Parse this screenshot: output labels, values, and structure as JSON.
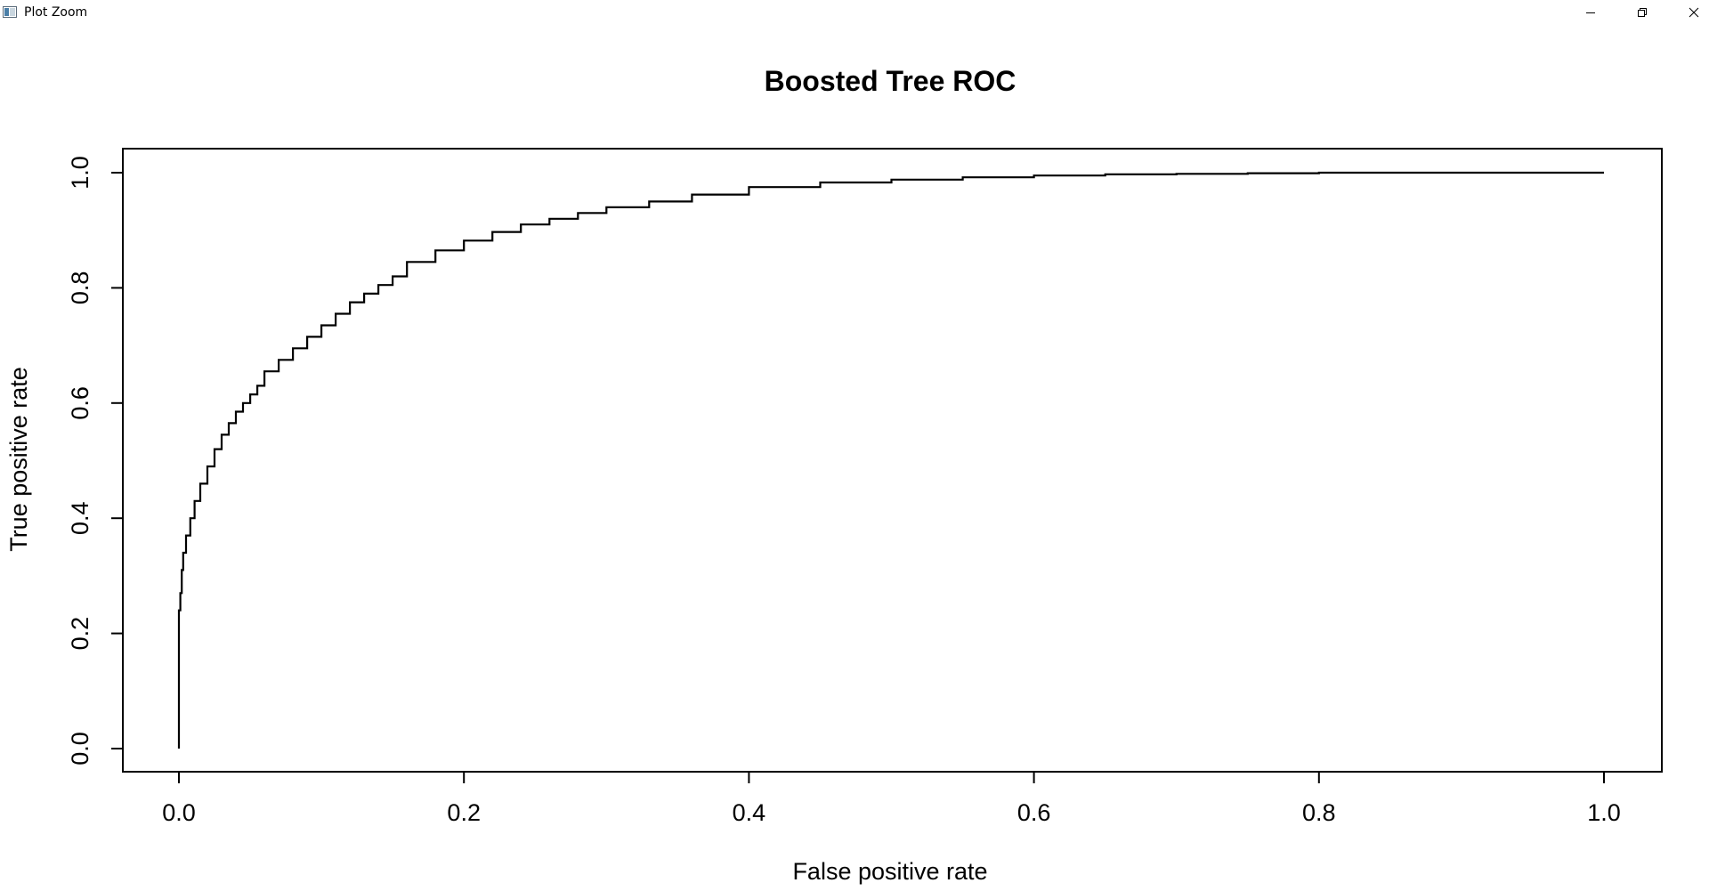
{
  "window": {
    "title": "Plot Zoom",
    "icon": "r-plot-window-icon",
    "controls": [
      "minimize",
      "restore",
      "close"
    ]
  },
  "chart_data": {
    "type": "line",
    "title": "Boosted Tree ROC",
    "xlabel": "False positive rate",
    "ylabel": "True positive rate",
    "xlim": [
      0.0,
      1.0
    ],
    "ylim": [
      0.0,
      1.0
    ],
    "xticks": [
      "0.0",
      "0.2",
      "0.4",
      "0.6",
      "0.8",
      "1.0"
    ],
    "yticks": [
      "0.0",
      "0.2",
      "0.4",
      "0.6",
      "0.8",
      "1.0"
    ],
    "grid": false,
    "legend": "none",
    "series": [
      {
        "color": "#000000",
        "x": [
          0.0,
          0.0,
          0.001,
          0.002,
          0.003,
          0.005,
          0.008,
          0.011,
          0.015,
          0.02,
          0.025,
          0.03,
          0.035,
          0.04,
          0.045,
          0.05,
          0.055,
          0.06,
          0.07,
          0.08,
          0.09,
          0.1,
          0.11,
          0.12,
          0.13,
          0.14,
          0.15,
          0.16,
          0.18,
          0.2,
          0.22,
          0.24,
          0.26,
          0.28,
          0.3,
          0.33,
          0.36,
          0.4,
          0.45,
          0.5,
          0.55,
          0.6,
          0.65,
          0.7,
          0.75,
          0.8,
          0.9,
          1.0
        ],
        "y": [
          0.0,
          0.13,
          0.24,
          0.27,
          0.31,
          0.34,
          0.37,
          0.4,
          0.43,
          0.46,
          0.49,
          0.52,
          0.545,
          0.565,
          0.585,
          0.6,
          0.615,
          0.63,
          0.655,
          0.675,
          0.695,
          0.715,
          0.735,
          0.755,
          0.775,
          0.79,
          0.805,
          0.82,
          0.845,
          0.865,
          0.882,
          0.897,
          0.91,
          0.92,
          0.93,
          0.94,
          0.95,
          0.962,
          0.975,
          0.983,
          0.988,
          0.992,
          0.995,
          0.997,
          0.998,
          0.999,
          1.0,
          1.0
        ]
      }
    ]
  }
}
